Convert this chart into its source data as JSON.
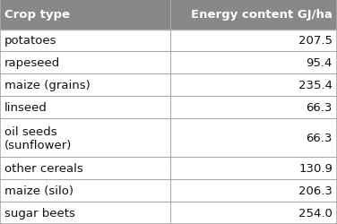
{
  "header": [
    "Crop type",
    "Energy content GJ/ha"
  ],
  "rows": [
    [
      "potatoes",
      "207.5"
    ],
    [
      "rapeseed",
      "95.4"
    ],
    [
      "maize (grains)",
      "235.4"
    ],
    [
      "linseed",
      "66.3"
    ],
    [
      "oil seeds\n(sunflower)",
      "66.3"
    ],
    [
      "other cereals",
      "130.9"
    ],
    [
      "maize (silo)",
      "206.3"
    ],
    [
      "sugar beets",
      "254.0"
    ]
  ],
  "header_bg": "#888888",
  "header_text_color": "#ffffff",
  "row_bg": "#ffffff",
  "row_line_color": "#aaaaaa",
  "border_color": "#aaaaaa",
  "col_split": 0.505,
  "header_fontsize": 9.5,
  "row_fontsize": 9.5,
  "row_heights_units": [
    1.35,
    1.0,
    1.0,
    1.0,
    1.0,
    1.75,
    1.0,
    1.0,
    1.0
  ],
  "text_color": "#111111"
}
